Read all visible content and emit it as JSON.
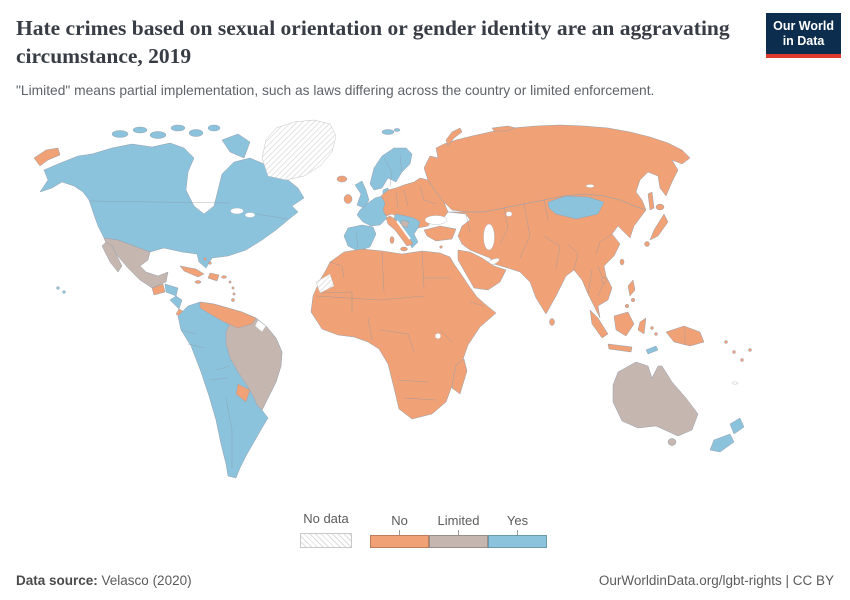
{
  "header": {
    "title": "Hate crimes based on sexual orientation or gender identity are an aggravating circumstance, 2019",
    "subtitle": "\"Limited\" means partial implementation, such as laws differing across the country or limited enforcement."
  },
  "logo": {
    "line1": "Our World",
    "line2": "in Data",
    "bg_color": "#0d2d4e",
    "accent_color": "#e0392e"
  },
  "legend": {
    "no_data_label": "No data",
    "categories": [
      {
        "key": "no",
        "label": "No"
      },
      {
        "key": "limited",
        "label": "Limited"
      },
      {
        "key": "yes",
        "label": "Yes"
      }
    ],
    "colors": {
      "no": "#f1a176",
      "limited": "#c6b6b0",
      "yes": "#8bc3dd",
      "no_data": "hatched"
    }
  },
  "map_data": {
    "type": "choropleth-world-map",
    "year": "2019",
    "categories": [
      "No data",
      "No",
      "Limited",
      "Yes"
    ],
    "regions": {
      "yes": [
        "Canada",
        "United States",
        "Honduras",
        "Nicaragua",
        "Colombia",
        "Ecuador",
        "Peru",
        "Bolivia",
        "Chile",
        "Argentina",
        "Uruguay",
        "United Kingdom",
        "France",
        "Spain",
        "Portugal",
        "Belgium",
        "Netherlands",
        "Denmark",
        "Norway",
        "Sweden",
        "Finland",
        "Croatia",
        "Serbia",
        "Albania",
        "Greece",
        "Mongolia",
        "Timor",
        "New Zealand"
      ],
      "limited": [
        "Mexico",
        "Brazil",
        "Bosnia and Herzegovina",
        "Australia"
      ],
      "no": [
        "Iceland",
        "Ireland",
        "Germany",
        "Poland",
        "Italy",
        "Ukraine",
        "Romania",
        "Bulgaria",
        "Russia",
        "Turkey",
        "Middle East",
        "Africa (most)",
        "Madagascar",
        "Central Asia",
        "China",
        "India",
        "Japan",
        "Southeast Asia",
        "Indonesia",
        "Papua New Guinea",
        "Venezuela",
        "Guyana",
        "Suriname",
        "Paraguay",
        "Guatemala",
        "Costa Rica",
        "Panama",
        "Cuba",
        "Caribbean islands"
      ],
      "no_data": [
        "Greenland",
        "Western Sahara"
      ]
    }
  },
  "footer": {
    "source_label": "Data source:",
    "source_value": " Velasco (2020)",
    "right_text": "OurWorldinData.org/lgbt-rights | CC BY"
  }
}
